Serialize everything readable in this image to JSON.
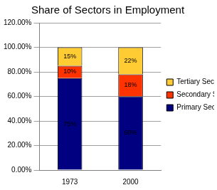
{
  "chart_data": {
    "type": "bar",
    "title": "Share of Sectors in Employment",
    "categories": [
      "1973",
      "2000"
    ],
    "series": [
      {
        "name": "Primary Sector",
        "color": "#000080",
        "values": [
          75,
          60
        ],
        "value_labels": [
          "75%",
          "60%"
        ]
      },
      {
        "name": "Secondary Sector",
        "color": "#ff3300",
        "values": [
          10,
          18
        ],
        "value_labels": [
          "10%",
          "18%"
        ]
      },
      {
        "name": "Tertiary Sector",
        "color": "#ffcc33",
        "values": [
          15,
          22
        ],
        "value_labels": [
          "15%",
          "22%"
        ]
      }
    ],
    "ylim": [
      0,
      120
    ],
    "yticks": [
      {
        "value": 0,
        "label": "0.00%"
      },
      {
        "value": 20,
        "label": "20.00%"
      },
      {
        "value": 40,
        "label": "40.00%"
      },
      {
        "value": 60,
        "label": "60.00%"
      },
      {
        "value": 80,
        "label": "80.00%"
      },
      {
        "value": 100,
        "label": "100.00%"
      },
      {
        "value": 120,
        "label": "120.00%"
      }
    ],
    "stacked": true,
    "grid": true,
    "legend": "right",
    "data_labels": true
  }
}
